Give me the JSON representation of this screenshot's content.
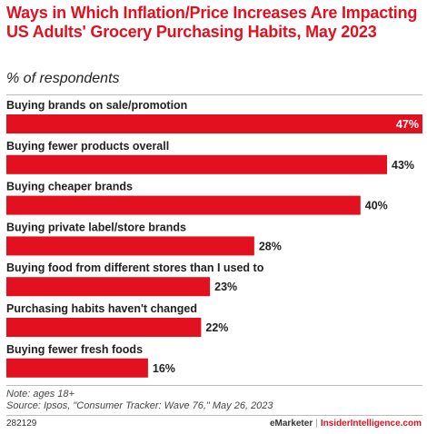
{
  "chart_data": {
    "type": "bar",
    "orientation": "horizontal",
    "title": "Ways in Which Inflation/Price Increases Are Impacting US Adults' Grocery Purchasing Habits, May 2023",
    "subtitle": "% of respondents",
    "categories": [
      "Buying brands on sale/promotion",
      "Buying fewer products overall",
      "Buying cheaper brands",
      "Buying private label/store brands",
      "Buying food from different stores than I used to",
      "Purchasing habits haven't changed",
      "Buying fewer fresh foods"
    ],
    "values": [
      47,
      43,
      40,
      28,
      23,
      22,
      16
    ],
    "value_labels": [
      "47%",
      "43%",
      "40%",
      "28%",
      "23%",
      "22%",
      "16%"
    ],
    "unit": "%",
    "xlim": [
      0,
      47
    ],
    "grid": false,
    "legend": "none",
    "bar_color": "#e3101f"
  },
  "footer": {
    "note": "Note: ages 18+",
    "source": "Source: Ipsos, \"Consumer Tracker: Wave 76,\" May 26, 2023",
    "chart_id": "282129",
    "brand_emarketer": "eMarketer",
    "brand_separator": "|",
    "brand_insider": "InsiderIntelligence.com"
  }
}
